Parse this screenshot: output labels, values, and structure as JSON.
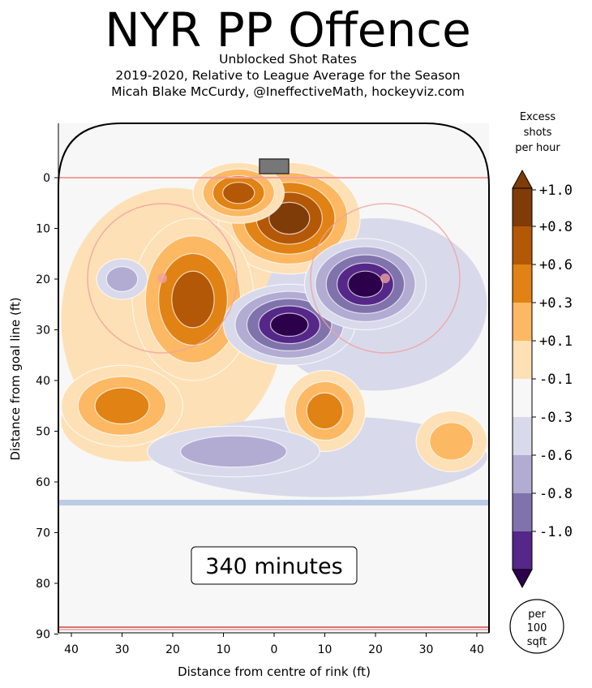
{
  "title": "NYR PP Offence",
  "subtitle_lines": [
    "Unblocked Shot Rates",
    "2019-2020, Relative to League Average for the Season",
    "Micah Blake McCurdy, @IneffectiveMath, hockeyviz.com"
  ],
  "minutes_label": "340 minutes",
  "per_area_lines": [
    "per",
    "100",
    "sqft"
  ],
  "colors": {
    "brown_dark": "#7f3b08",
    "brown": "#b35806",
    "orange": "#e08214",
    "orange_light": "#fdb863",
    "peach": "#fee0b6",
    "white": "#f7f7f7",
    "lav_light": "#d8daeb",
    "lav": "#b2abd2",
    "purple": "#8073ac",
    "purple_dark": "#542788",
    "purple_deep": "#2d004b",
    "rink_line_red": "#f0a0a0",
    "blue_line": "#aabfe0"
  },
  "chart_data": {
    "type": "heatmap",
    "title": "NYR PP Offence",
    "xlabel": "Distance from centre of rink (ft)",
    "ylabel": "Distance from goal line (ft)",
    "x_ticks": [
      40,
      30,
      20,
      10,
      0,
      10,
      20,
      30,
      40
    ],
    "y_ticks": [
      0,
      10,
      20,
      30,
      40,
      50,
      60,
      70,
      80,
      90
    ],
    "xlim": [
      -42.5,
      42.5
    ],
    "ylim": [
      -11,
      90
    ],
    "colorbar": {
      "label_lines": [
        "Excess",
        "shots",
        "per hour"
      ],
      "ticks": [
        "+1.0",
        "+0.8",
        "+0.6",
        "+0.3",
        "+0.1",
        "-0.1",
        "-0.3",
        "-0.6",
        "-0.8",
        "-1.0"
      ],
      "levels": [
        1.0,
        0.8,
        0.6,
        0.3,
        0.1,
        -0.1,
        -0.3,
        -0.6,
        -0.8,
        -1.0
      ]
    },
    "hotspots": [
      {
        "name": "net-front excess",
        "x": 3,
        "y": 8,
        "value": 1.0
      },
      {
        "name": "left faceoff dot excess",
        "x": -16,
        "y": 24,
        "value": 0.8
      },
      {
        "name": "left circle top excess",
        "x": -7,
        "y": 3,
        "value": 0.9
      },
      {
        "name": "left point excess",
        "x": -30,
        "y": 45,
        "value": 0.6
      },
      {
        "name": "centre slot point excess",
        "x": 10,
        "y": 46,
        "value": 0.6
      },
      {
        "name": "right point excess",
        "x": 35,
        "y": 52,
        "value": 0.3
      },
      {
        "name": "right slot deficit",
        "x": 3,
        "y": 29,
        "value": -1.0
      },
      {
        "name": "right circle deficit",
        "x": 18,
        "y": 21,
        "value": -1.0
      },
      {
        "name": "high slot deficit",
        "x": -8,
        "y": 54,
        "value": -0.3
      },
      {
        "name": "left circle deficit",
        "x": -30,
        "y": 20,
        "value": -0.3
      }
    ]
  }
}
